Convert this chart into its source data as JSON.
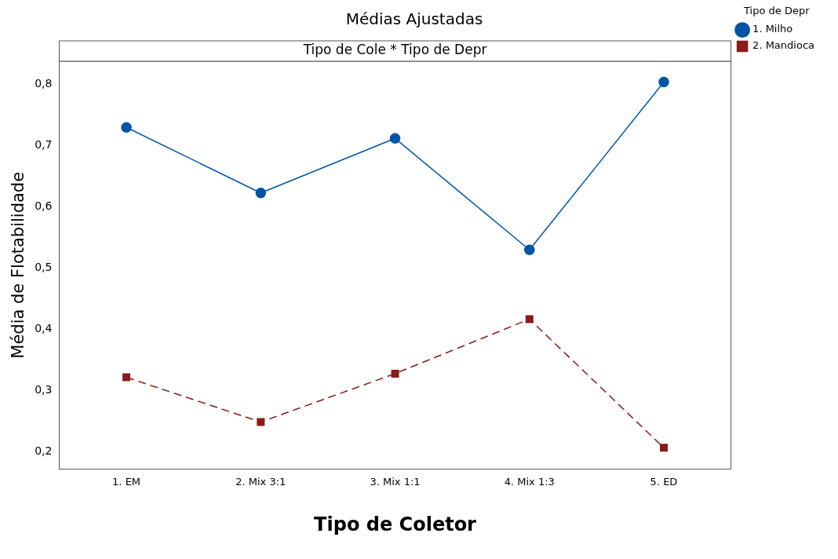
{
  "chart_data": {
    "type": "line",
    "title": "Médias Ajustadas",
    "subtitle": "Tipo de Cole * Tipo de Depr",
    "xlabel": "Tipo de Coletor",
    "ylabel": "Média de Flotabilidade",
    "legend_title": "Tipo de Depr",
    "legend": "right",
    "grid": false,
    "categories": [
      "1. EM",
      "2. Mix 3:1",
      "3. Mix 1:1",
      "4. Mix 1:3",
      "5. ED"
    ],
    "series": [
      {
        "name": "1. Milho",
        "color": "#0054a6",
        "values": [
          0.73,
          0.623,
          0.712,
          0.53,
          0.804
        ],
        "marker": "circle",
        "line_style": "solid"
      },
      {
        "name": "2. Mandioca",
        "color": "#8b1a1a",
        "values": [
          0.322,
          0.249,
          0.328,
          0.417,
          0.207
        ],
        "marker": "square",
        "line_style": "dashed"
      }
    ],
    "ylim": [
      0.172,
      0.838
    ],
    "yticks": [
      {
        "value": 0.2,
        "label": "0,2"
      },
      {
        "value": 0.3,
        "label": "0,3"
      },
      {
        "value": 0.4,
        "label": "0,4"
      },
      {
        "value": 0.5,
        "label": "0,5"
      },
      {
        "value": 0.6,
        "label": "0,6"
      },
      {
        "value": 0.7,
        "label": "0,7"
      },
      {
        "value": 0.8,
        "label": "0,8"
      }
    ]
  }
}
